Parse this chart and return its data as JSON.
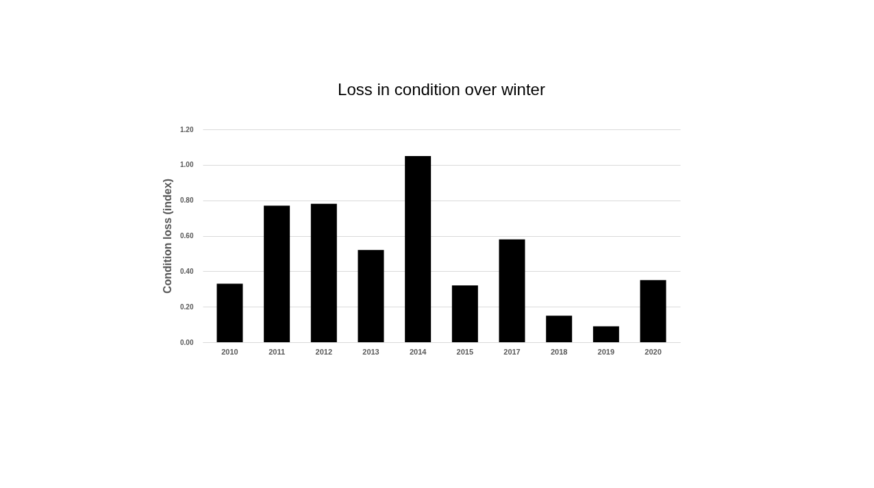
{
  "chart_data": {
    "type": "bar",
    "title": "Loss in condition over winter",
    "ylabel": "Condition loss (index)",
    "categories": [
      "2010",
      "2011",
      "2012",
      "2013",
      "2014",
      "2015",
      "2017",
      "2018",
      "2019",
      "2020"
    ],
    "values": [
      0.33,
      0.77,
      0.78,
      0.52,
      1.05,
      0.32,
      0.58,
      0.15,
      0.09,
      0.35
    ],
    "color": "#000000",
    "ylim": [
      0,
      1.2
    ],
    "yticks": [
      {
        "value": 0,
        "label": "0.00"
      },
      {
        "value": 0.2,
        "label": "0.20"
      },
      {
        "value": 0.4,
        "label": "0.40"
      },
      {
        "value": 0.6,
        "label": "0.60"
      },
      {
        "value": 0.8,
        "label": "0.80"
      },
      {
        "value": 1.0,
        "label": "1.00"
      },
      {
        "value": 1.2,
        "label": "1.20"
      }
    ],
    "grid": "y"
  }
}
